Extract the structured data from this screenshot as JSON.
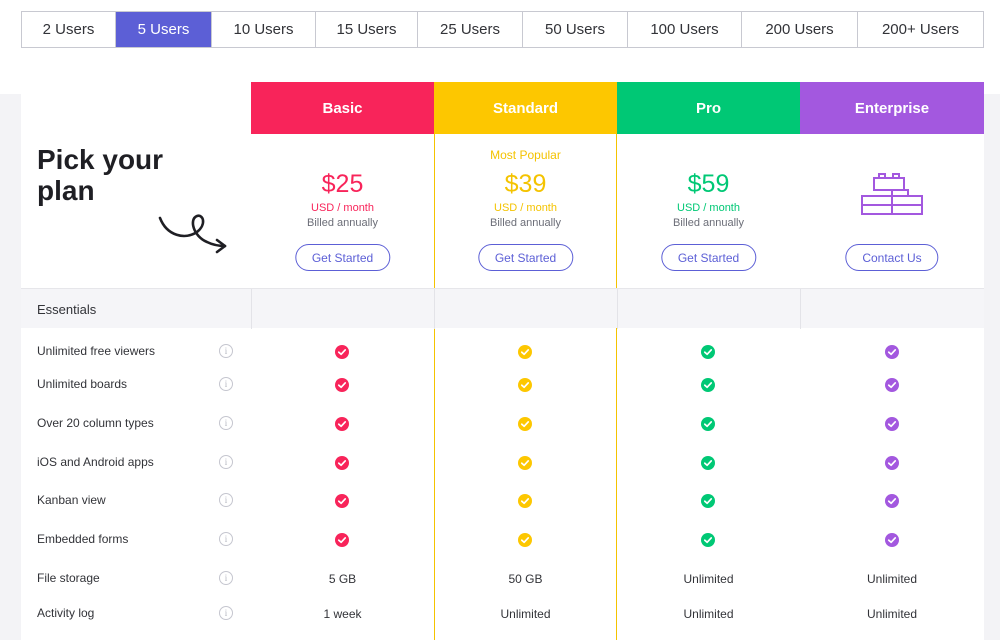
{
  "user_tabs": [
    {
      "label": "2 Users"
    },
    {
      "label": "5 Users",
      "active": true
    },
    {
      "label": "10 Users"
    },
    {
      "label": "15 Users"
    },
    {
      "label": "25 Users"
    },
    {
      "label": "50 Users"
    },
    {
      "label": "100 Users"
    },
    {
      "label": "200 Users"
    },
    {
      "label": "200+ Users"
    }
  ],
  "heading": {
    "line1": "Pick your",
    "line2": "plan"
  },
  "plans": {
    "basic": {
      "name": "Basic",
      "color": "#f8245a",
      "price": "$25",
      "per": "USD / month",
      "billed": "Billed annually",
      "cta": "Get Started"
    },
    "standard": {
      "name": "Standard",
      "color": "#fdc700",
      "badge": "Most Popular",
      "price": "$39",
      "per": "USD / month",
      "billed": "Billed annually",
      "cta": "Get Started"
    },
    "pro": {
      "name": "Pro",
      "color": "#00c875",
      "price": "$59",
      "per": "USD / month",
      "billed": "Billed annually",
      "cta": "Get Started"
    },
    "enterprise": {
      "name": "Enterprise",
      "color": "#a358df",
      "cta": "Contact Us",
      "icon": "lego-blocks-icon"
    }
  },
  "section": {
    "label": "Essentials"
  },
  "features": [
    {
      "label": "Unlimited free viewers"
    },
    {
      "label": "Unlimited boards"
    },
    {
      "label": "Over 20 column types"
    },
    {
      "label": "iOS and Android apps"
    },
    {
      "label": "Kanban view"
    },
    {
      "label": "Embedded forms"
    },
    {
      "label": "File storage",
      "values": [
        "5 GB",
        "50 GB",
        "Unlimited",
        "Unlimited"
      ]
    },
    {
      "label": "Activity log",
      "values": [
        "1 week",
        "Unlimited",
        "Unlimited",
        "Unlimited"
      ]
    }
  ]
}
